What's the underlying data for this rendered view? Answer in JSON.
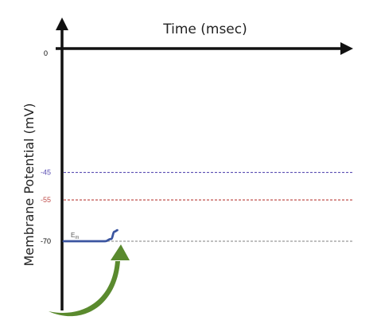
{
  "chart_data": {
    "type": "line",
    "title": "Time (msec)",
    "xlabel": "Time (msec)",
    "ylabel": "Membrane Potential  (mV)",
    "ylim": [
      -85,
      0
    ],
    "grid": false,
    "legend": "none",
    "y_ticks": [
      {
        "value": 0,
        "label": "0",
        "color": "#000000"
      },
      {
        "value": -45,
        "label": "-45",
        "color": "#5b4fb3"
      },
      {
        "value": -55,
        "label": "-55",
        "color": "#c0504d"
      },
      {
        "value": -70,
        "label": "-70",
        "color": "#000000"
      }
    ],
    "reference_lines": [
      {
        "value": -45,
        "color": "#5b4fb3",
        "style": "dashed"
      },
      {
        "value": -55,
        "color": "#c0504d",
        "style": "dashed"
      },
      {
        "value": -70,
        "color": "#999999",
        "style": "dashed"
      }
    ],
    "series": [
      {
        "color": "#3b55a0",
        "x": [
          0,
          0.65,
          0.74,
          0.8,
          0.84
        ],
        "y": [
          -70,
          -70,
          -69.2,
          -66.5,
          -66
        ]
      }
    ],
    "annotations": {
      "em_label": "E",
      "em_subscript": "m",
      "arrow_color": "#5a8a2e"
    }
  }
}
